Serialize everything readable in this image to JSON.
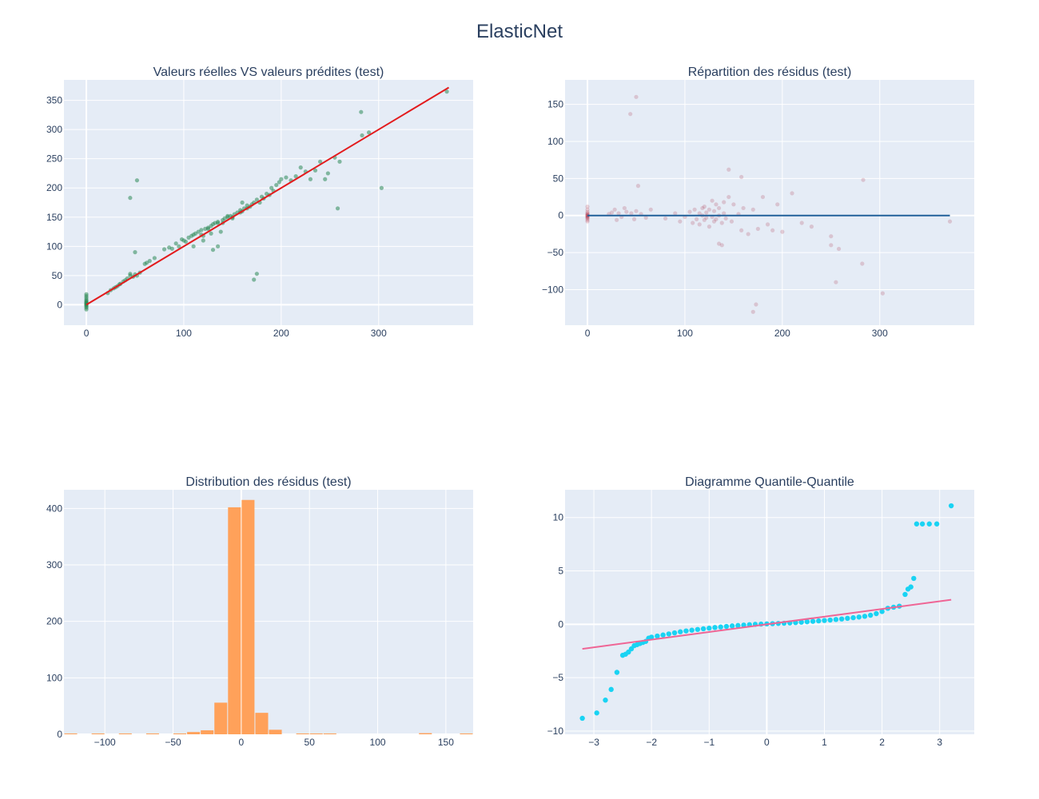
{
  "title": "ElasticNet",
  "chart_data": [
    {
      "id": "pred",
      "type": "scatter",
      "title": "Valeurs réelles VS valeurs prédites (test)",
      "xlabel": "",
      "ylabel": "",
      "xlim": [
        -23,
        397
      ],
      "ylim": [
        -35,
        385
      ],
      "xticks": [
        0,
        100,
        200,
        300
      ],
      "yticks": [
        0,
        50,
        100,
        150,
        200,
        250,
        300,
        350
      ],
      "grid": true,
      "points_color": "#2e8b57",
      "line_color": "#e31a1c",
      "series": [
        {
          "mode": "markers",
          "x": [
            0,
            0,
            0,
            0,
            0,
            0,
            0,
            0,
            0,
            0,
            0,
            0,
            0,
            0,
            0,
            22,
            25,
            28,
            30,
            32,
            34,
            35,
            38,
            40,
            42,
            45,
            45,
            48,
            50,
            50,
            52,
            55,
            60,
            62,
            65,
            70,
            80,
            85,
            88,
            92,
            95,
            98,
            100,
            102,
            105,
            108,
            110,
            112,
            115,
            118,
            120,
            122,
            125,
            128,
            130,
            132,
            135,
            138,
            140,
            142,
            145,
            148,
            150,
            152,
            155,
            158,
            160,
            162,
            165,
            168,
            170,
            172,
            175,
            178,
            180,
            182,
            185,
            188,
            190,
            192,
            195,
            198,
            200,
            205,
            210,
            215,
            220,
            225,
            230,
            235,
            240,
            245,
            248,
            255,
            258,
            260,
            282,
            283,
            290,
            303,
            172,
            175,
            130,
            135,
            45,
            52,
            110,
            118,
            125,
            140,
            150,
            158,
            165,
            120,
            128,
            135,
            145,
            160,
            370
          ],
          "y": [
            -8,
            -5,
            -3,
            -1,
            0,
            1,
            2,
            3,
            4,
            5,
            7,
            9,
            12,
            15,
            18,
            20,
            25,
            28,
            30,
            32,
            35,
            36,
            40,
            42,
            45,
            50,
            183,
            48,
            52,
            90,
            213,
            55,
            70,
            72,
            75,
            80,
            95,
            98,
            96,
            105,
            100,
            112,
            110,
            108,
            115,
            118,
            120,
            122,
            125,
            128,
            118,
            130,
            132,
            135,
            138,
            140,
            142,
            125,
            145,
            148,
            150,
            152,
            148,
            155,
            158,
            162,
            160,
            165,
            170,
            168,
            172,
            175,
            180,
            175,
            185,
            182,
            190,
            188,
            200,
            195,
            205,
            210,
            215,
            218,
            213,
            220,
            235,
            228,
            215,
            230,
            245,
            215,
            225,
            252,
            165,
            245,
            330,
            290,
            295,
            200,
            43,
            53,
            94,
            100,
            53,
            50,
            100,
            120,
            130,
            140,
            150,
            158,
            165,
            110,
            122,
            140,
            152,
            175,
            365
          ]
        },
        {
          "mode": "line",
          "x": [
            0,
            372
          ],
          "y": [
            0,
            372
          ]
        }
      ]
    },
    {
      "id": "resid",
      "type": "scatter",
      "title": "Répartition des résidus (test)",
      "xlabel": "",
      "ylabel": "",
      "xlim": [
        -23,
        397
      ],
      "ylim": [
        -148,
        183
      ],
      "xticks": [
        0,
        100,
        200,
        300
      ],
      "yticks": [
        -100,
        -50,
        0,
        50,
        100,
        150
      ],
      "grid": true,
      "points_color": "#a0102a",
      "line_color": "#1f5f99",
      "series": [
        {
          "mode": "markers",
          "x": [
            0,
            0,
            0,
            0,
            0,
            0,
            0,
            0,
            0,
            0,
            0,
            0,
            0,
            0,
            22,
            25,
            28,
            30,
            32,
            35,
            38,
            40,
            45,
            48,
            50,
            55,
            60,
            65,
            80,
            90,
            95,
            100,
            105,
            108,
            110,
            112,
            115,
            115,
            118,
            118,
            120,
            120,
            122,
            122,
            125,
            125,
            128,
            128,
            130,
            130,
            132,
            132,
            135,
            135,
            138,
            140,
            140,
            142,
            145,
            148,
            150,
            155,
            158,
            160,
            165,
            170,
            175,
            180,
            185,
            190,
            195,
            200,
            210,
            220,
            230,
            250,
            255,
            258,
            282,
            283,
            303,
            372,
            44,
            50,
            52,
            145,
            158,
            170,
            173,
            135,
            138,
            250
          ],
          "y": [
            -8,
            -6,
            -4,
            -3,
            -2,
            -1,
            0,
            0,
            1,
            2,
            3,
            5,
            8,
            12,
            2,
            4,
            8,
            -6,
            3,
            -2,
            10,
            5,
            3,
            -5,
            6,
            2,
            -3,
            8,
            -4,
            3,
            -8,
            -2,
            5,
            -10,
            8,
            -5,
            3,
            -12,
            10,
            0,
            -6,
            12,
            4,
            -3,
            8,
            -15,
            20,
            -2,
            6,
            -8,
            15,
            -5,
            10,
            0,
            -10,
            18,
            3,
            -4,
            25,
            -8,
            15,
            2,
            -20,
            10,
            -25,
            8,
            -18,
            25,
            -12,
            -20,
            15,
            -22,
            30,
            -10,
            -15,
            -40,
            -90,
            -45,
            -65,
            48,
            -105,
            -8,
            137,
            160,
            40,
            62,
            52,
            -130,
            -120,
            -38,
            -40,
            -28
          ],
          "opacity": 0.18
        },
        {
          "mode": "line",
          "x": [
            0,
            372
          ],
          "y": [
            0,
            0
          ]
        }
      ]
    },
    {
      "id": "hist",
      "type": "bar",
      "title": "Distribution des résidus (test)",
      "xlabel": "",
      "ylabel": "",
      "xlim": [
        -130,
        170
      ],
      "ylim": [
        0,
        433
      ],
      "xticks": [
        -100,
        -50,
        0,
        50,
        100,
        150
      ],
      "yticks": [
        0,
        100,
        200,
        300,
        400
      ],
      "grid": true,
      "bar_color": "#ffa15a",
      "bin_width": 10,
      "bins": [
        {
          "x0": -130,
          "count": 1
        },
        {
          "x0": -110,
          "count": 1
        },
        {
          "x0": -90,
          "count": 1
        },
        {
          "x0": -70,
          "count": 1
        },
        {
          "x0": -50,
          "count": 1
        },
        {
          "x0": -40,
          "count": 4
        },
        {
          "x0": -30,
          "count": 7
        },
        {
          "x0": -20,
          "count": 56
        },
        {
          "x0": -10,
          "count": 402
        },
        {
          "x0": 0,
          "count": 415
        },
        {
          "x0": 10,
          "count": 38
        },
        {
          "x0": 20,
          "count": 8
        },
        {
          "x0": 40,
          "count": 1
        },
        {
          "x0": 50,
          "count": 1
        },
        {
          "x0": 60,
          "count": 1
        },
        {
          "x0": 130,
          "count": 2
        },
        {
          "x0": 160,
          "count": 1
        }
      ]
    },
    {
      "id": "qq",
      "type": "scatter",
      "title": "Diagramme Quantile-Quantile",
      "xlabel": "",
      "ylabel": "",
      "xlim": [
        -3.5,
        3.6
      ],
      "ylim": [
        -10.3,
        12.6
      ],
      "xticks": [
        -3,
        -2,
        -1,
        0,
        1,
        2,
        3
      ],
      "yticks": [
        -10,
        -5,
        0,
        5,
        10
      ],
      "grid": true,
      "points_color": "#19d3f3",
      "line_color": "#ef6595",
      "series": [
        {
          "mode": "markers",
          "x": [
            -3.2,
            -2.95,
            -2.8,
            -2.7,
            -2.6,
            -2.5,
            -2.45,
            -2.4,
            -2.35,
            -2.3,
            -2.25,
            -2.2,
            -2.15,
            -2.1,
            -2.05,
            -2.0,
            -1.9,
            -1.8,
            -1.7,
            -1.6,
            -1.5,
            -1.4,
            -1.3,
            -1.2,
            -1.1,
            -1.0,
            -0.9,
            -0.8,
            -0.7,
            -0.6,
            -0.5,
            -0.4,
            -0.3,
            -0.2,
            -0.1,
            0,
            0.1,
            0.2,
            0.3,
            0.4,
            0.5,
            0.6,
            0.7,
            0.8,
            0.9,
            1.0,
            1.1,
            1.2,
            1.3,
            1.4,
            1.5,
            1.6,
            1.7,
            1.8,
            1.9,
            2.0,
            2.1,
            2.2,
            2.3,
            2.4,
            2.45,
            2.5,
            2.55,
            2.6,
            2.7,
            2.82,
            2.95,
            3.2
          ],
          "y": [
            -8.8,
            -8.3,
            -7.1,
            -6.1,
            -4.5,
            -2.9,
            -2.8,
            -2.6,
            -2.3,
            -2.0,
            -1.9,
            -1.8,
            -1.7,
            -1.6,
            -1.3,
            -1.2,
            -1.1,
            -1.0,
            -0.9,
            -0.8,
            -0.7,
            -0.62,
            -0.55,
            -0.48,
            -0.42,
            -0.36,
            -0.3,
            -0.25,
            -0.2,
            -0.15,
            -0.11,
            -0.07,
            -0.03,
            0.0,
            0.02,
            0.04,
            0.06,
            0.08,
            0.1,
            0.13,
            0.16,
            0.2,
            0.24,
            0.28,
            0.32,
            0.36,
            0.4,
            0.45,
            0.5,
            0.56,
            0.62,
            0.68,
            0.75,
            0.85,
            1.0,
            1.2,
            1.5,
            1.6,
            1.7,
            2.8,
            3.3,
            3.5,
            4.3,
            9.4,
            9.4,
            9.4,
            9.4,
            11.1
          ]
        },
        {
          "mode": "line",
          "x": [
            -3.2,
            3.2
          ],
          "y": [
            -2.3,
            2.3
          ]
        }
      ]
    }
  ]
}
